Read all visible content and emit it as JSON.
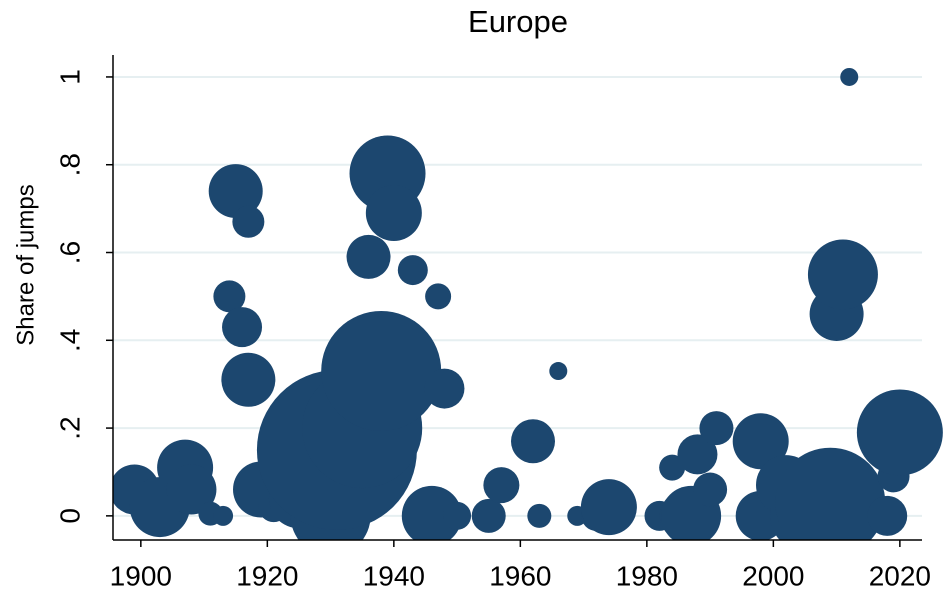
{
  "chart_data": {
    "type": "bubble",
    "title": "Europe",
    "y_label": "Share of jumps",
    "color": "#1c476f",
    "grid": true,
    "xlim": [
      1895.6,
      2023.5
    ],
    "ylim": [
      -0.055,
      1.05
    ],
    "xticks": [
      1900,
      1920,
      1940,
      1960,
      1980,
      2000,
      2020
    ],
    "yticks": [
      0,
      {
        "value": 0.2,
        "label": ".2"
      },
      {
        "value": 0.4,
        "label": ".4"
      },
      {
        "value": 0.6,
        "label": ".6"
      },
      {
        "value": 0.8,
        "label": ".8"
      },
      1
    ],
    "x": [
      1899,
      1903,
      1907,
      1908,
      1911,
      1913,
      1914,
      1915,
      1916,
      1917,
      1917,
      1919,
      1921,
      1925,
      1930,
      1931,
      1935,
      1938,
      1936,
      1939,
      1940,
      1943,
      1947,
      1948,
      1946,
      1950,
      1955,
      1957,
      1962,
      1963,
      1966,
      1969,
      1972,
      1974,
      1982,
      1984,
      1986,
      1987,
      1988,
      1990,
      1991,
      1998,
      1998,
      2002,
      2005,
      2009,
      2010,
      2011,
      2012,
      2018,
      2019,
      2020
    ],
    "values": [
      0.06,
      0.02,
      0.11,
      0.06,
      0.005,
      0.0,
      0.5,
      0.74,
      0.43,
      0.67,
      0.31,
      0.06,
      0.02,
      0.04,
      0.0,
      0.15,
      0.2,
      0.33,
      0.59,
      0.78,
      0.69,
      0.56,
      0.5,
      0.29,
      0.0,
      0.0,
      0.0,
      0.07,
      0.17,
      0.0,
      0.33,
      0.0,
      0.0,
      0.02,
      0.0,
      0.11,
      0.0,
      0.0,
      0.14,
      0.06,
      0.2,
      0.17,
      0.0,
      0.07,
      0.0,
      0.03,
      0.46,
      0.55,
      1.0,
      0.0,
      0.09,
      0.19
    ],
    "sizes": [
      6.25,
      9,
      7.84,
      6.25,
      1.44,
      1,
      2.56,
      7.29,
      4,
      2.56,
      7.29,
      7.84,
      2.25,
      9,
      16,
      64,
      36,
      36,
      4.84,
      14.44,
      7.84,
      2.25,
      1.69,
      4,
      9,
      1.96,
      2.89,
      3.24,
      4.84,
      1.44,
      0.81,
      1,
      2.25,
      7.84,
      2.25,
      1.69,
      6.25,
      9,
      4,
      2.89,
      2.89,
      7.84,
      6.25,
      9,
      12.25,
      30.25,
      7.29,
      12.25,
      0.81,
      4,
      2.56,
      18.49
    ]
  }
}
